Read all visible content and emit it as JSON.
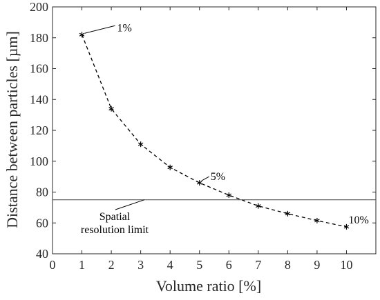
{
  "chart_data": {
    "type": "line",
    "title": "",
    "xlabel": "Volume ratio [%]",
    "ylabel": "Distance between particles [µm]",
    "xlim": [
      0,
      11
    ],
    "ylim": [
      40,
      200
    ],
    "xticks": [
      0,
      1,
      2,
      3,
      4,
      5,
      6,
      7,
      8,
      9,
      10
    ],
    "yticks": [
      40,
      60,
      80,
      100,
      120,
      140,
      160,
      180,
      200
    ],
    "grid": false,
    "series": [
      {
        "x": [
          1,
          2,
          3,
          4,
          5,
          6,
          7,
          8,
          9,
          10
        ],
        "y": [
          182,
          134,
          111,
          96,
          86,
          78,
          71,
          66,
          61.5,
          57.5
        ],
        "line_style": "dashed",
        "marker": "asterisk",
        "color": "#000000"
      }
    ],
    "reference_line": {
      "y": 75,
      "label_lines": [
        "Spatial",
        "resolution limit"
      ],
      "color": "#555555"
    },
    "annotations": [
      {
        "text": "1%",
        "x": 1,
        "y": 182
      },
      {
        "text": "5%",
        "x": 5,
        "y": 86
      },
      {
        "text": "10%",
        "x": 10,
        "y": 57.5
      }
    ]
  }
}
